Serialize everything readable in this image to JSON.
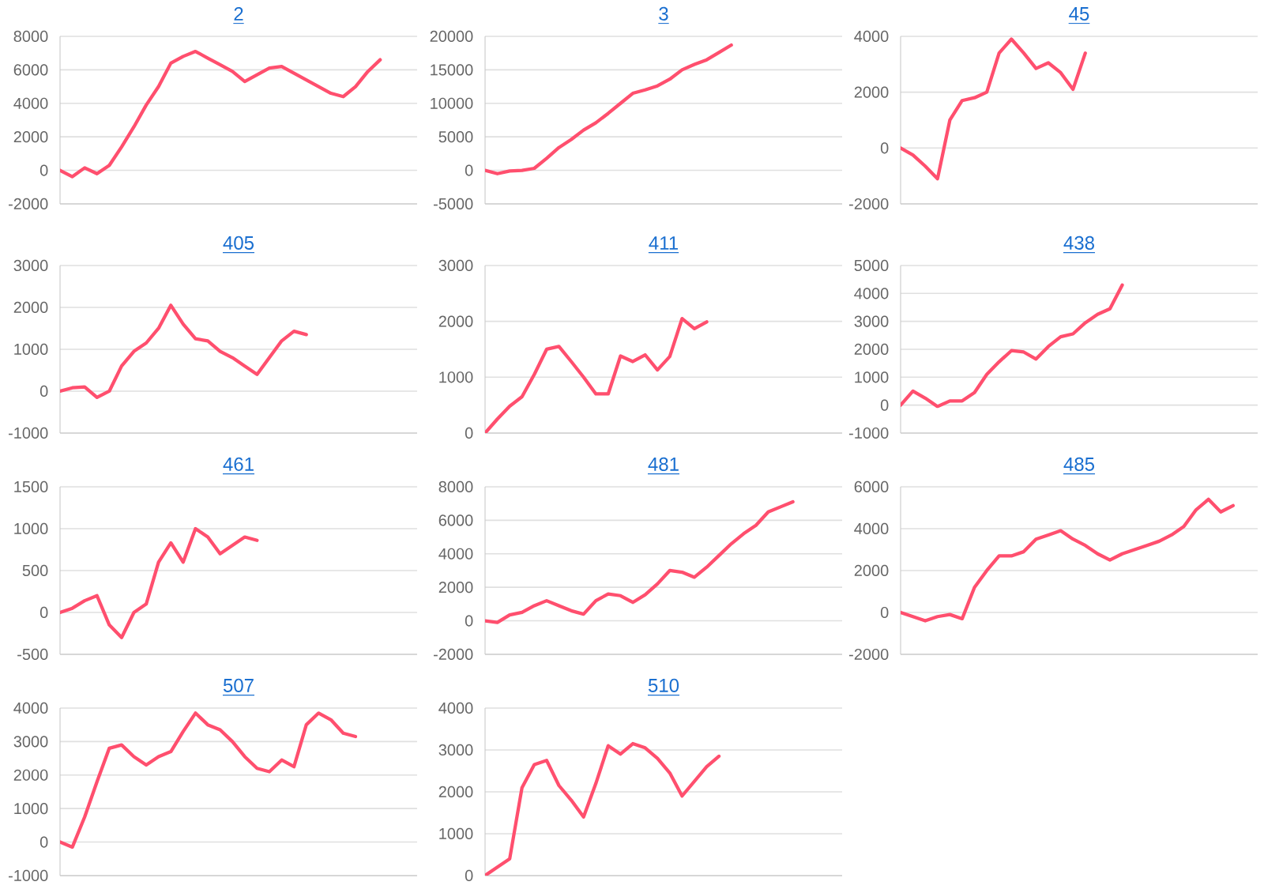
{
  "chart_data": [
    {
      "type": "line",
      "title": "2",
      "categories": [
        null,
        null,
        null,
        null,
        null,
        null,
        null,
        null,
        null,
        null,
        null,
        null,
        null,
        null,
        null,
        null,
        null,
        null,
        null,
        null,
        null,
        null,
        null,
        null,
        null,
        null,
        null,
        null,
        null,
        null
      ],
      "series": [
        {
          "color": "#ff4f6e",
          "values": [
            0,
            -380,
            150,
            -200,
            300,
            1400,
            2600,
            3900,
            5000,
            6400,
            6800,
            7100,
            6700,
            6300,
            5900,
            5300,
            5700,
            6100,
            6200,
            5800,
            5400,
            5000,
            4600,
            4400,
            5000,
            5900,
            6600,
            null,
            null,
            null
          ]
        }
      ],
      "ylim": [
        -2000,
        8000
      ],
      "yticks": [
        -2000,
        0,
        2000,
        4000,
        6000,
        8000
      ],
      "grid": "y",
      "tick_labels": "y"
    },
    {
      "type": "line",
      "title": "3",
      "categories": [
        null,
        null,
        null,
        null,
        null,
        null,
        null,
        null,
        null,
        null,
        null,
        null,
        null,
        null,
        null,
        null,
        null,
        null,
        null,
        null,
        null,
        null,
        null,
        null,
        null,
        null,
        null,
        null,
        null,
        null
      ],
      "series": [
        {
          "color": "#ff4f6e",
          "values": [
            0,
            -500,
            -100,
            0,
            300,
            1800,
            3400,
            4600,
            6000,
            7100,
            8500,
            10000,
            11500,
            12000,
            12600,
            13600,
            15000,
            15800,
            16500,
            17600,
            18700,
            null,
            null,
            null,
            null,
            null,
            null,
            null,
            null,
            null
          ]
        }
      ],
      "ylim": [
        -5000,
        20000
      ],
      "yticks": [
        -5000,
        0,
        5000,
        10000,
        15000,
        20000
      ],
      "grid": "y",
      "tick_labels": "y"
    },
    {
      "type": "line",
      "title": "45",
      "categories": [
        null,
        null,
        null,
        null,
        null,
        null,
        null,
        null,
        null,
        null,
        null,
        null,
        null,
        null,
        null,
        null,
        null,
        null,
        null,
        null,
        null,
        null,
        null,
        null,
        null,
        null,
        null,
        null,
        null,
        null
      ],
      "series": [
        {
          "color": "#ff4f6e",
          "values": [
            0,
            -250,
            -650,
            -1100,
            1000,
            1700,
            1800,
            2000,
            3400,
            3900,
            3400,
            2850,
            3050,
            2700,
            2100,
            3400,
            null,
            null,
            null,
            null,
            null,
            null,
            null,
            null,
            null,
            null,
            null,
            null,
            null,
            null
          ]
        }
      ],
      "ylim": [
        -2000,
        4000
      ],
      "yticks": [
        -2000,
        0,
        2000,
        4000
      ],
      "grid": "y",
      "tick_labels": "y"
    },
    {
      "type": "line",
      "title": "405",
      "categories": [
        null,
        null,
        null,
        null,
        null,
        null,
        null,
        null,
        null,
        null,
        null,
        null,
        null,
        null,
        null,
        null,
        null,
        null,
        null,
        null,
        null,
        null,
        null,
        null,
        null,
        null,
        null,
        null,
        null,
        null
      ],
      "series": [
        {
          "color": "#ff4f6e",
          "values": [
            0,
            80,
            100,
            -150,
            0,
            600,
            950,
            1150,
            1500,
            2050,
            1600,
            1250,
            1200,
            950,
            800,
            600,
            400,
            800,
            1200,
            1430,
            1350,
            null,
            null,
            null,
            null,
            null,
            null,
            null,
            null,
            null
          ]
        }
      ],
      "ylim": [
        -1000,
        3000
      ],
      "yticks": [
        -1000,
        0,
        1000,
        2000,
        3000
      ],
      "grid": "y",
      "tick_labels": "y"
    },
    {
      "type": "line",
      "title": "411",
      "categories": [
        null,
        null,
        null,
        null,
        null,
        null,
        null,
        null,
        null,
        null,
        null,
        null,
        null,
        null,
        null,
        null,
        null,
        null,
        null,
        null,
        null,
        null,
        null,
        null,
        null,
        null,
        null,
        null,
        null,
        null
      ],
      "series": [
        {
          "color": "#ff4f6e",
          "values": [
            0,
            250,
            480,
            650,
            1050,
            1500,
            1550,
            1280,
            1000,
            700,
            700,
            1380,
            1280,
            1400,
            1130,
            1370,
            2050,
            1870,
            1990,
            null,
            null,
            null,
            null,
            null,
            null,
            null,
            null,
            null,
            null,
            null
          ]
        }
      ],
      "ylim": [
        0,
        3000
      ],
      "yticks": [
        0,
        1000,
        2000,
        3000
      ],
      "grid": "y",
      "tick_labels": "y"
    },
    {
      "type": "line",
      "title": "438",
      "categories": [
        null,
        null,
        null,
        null,
        null,
        null,
        null,
        null,
        null,
        null,
        null,
        null,
        null,
        null,
        null,
        null,
        null,
        null,
        null,
        null,
        null,
        null,
        null,
        null,
        null,
        null,
        null,
        null,
        null,
        null
      ],
      "series": [
        {
          "color": "#ff4f6e",
          "values": [
            0,
            500,
            250,
            -50,
            150,
            150,
            450,
            1100,
            1550,
            1950,
            1900,
            1650,
            2100,
            2450,
            2550,
            2950,
            3250,
            3450,
            4300,
            null,
            null,
            null,
            null,
            null,
            null,
            null,
            null,
            null,
            null,
            null
          ]
        }
      ],
      "ylim": [
        -1000,
        5000
      ],
      "yticks": [
        -1000,
        0,
        1000,
        2000,
        3000,
        4000,
        5000
      ],
      "grid": "y",
      "tick_labels": "y"
    },
    {
      "type": "line",
      "title": "461",
      "categories": [
        null,
        null,
        null,
        null,
        null,
        null,
        null,
        null,
        null,
        null,
        null,
        null,
        null,
        null,
        null,
        null,
        null,
        null,
        null,
        null,
        null,
        null,
        null,
        null,
        null,
        null,
        null,
        null,
        null,
        null
      ],
      "series": [
        {
          "color": "#ff4f6e",
          "values": [
            0,
            50,
            140,
            200,
            -150,
            -300,
            0,
            100,
            600,
            830,
            600,
            1000,
            900,
            700,
            800,
            900,
            860,
            null,
            null,
            null,
            null,
            null,
            null,
            null,
            null,
            null,
            null,
            null,
            null,
            null
          ]
        }
      ],
      "ylim": [
        -500,
        1500
      ],
      "yticks": [
        -500,
        0,
        500,
        1000,
        1500
      ],
      "grid": "y",
      "tick_labels": "y"
    },
    {
      "type": "line",
      "title": "481",
      "categories": [
        null,
        null,
        null,
        null,
        null,
        null,
        null,
        null,
        null,
        null,
        null,
        null,
        null,
        null,
        null,
        null,
        null,
        null,
        null,
        null,
        null,
        null,
        null,
        null,
        null,
        null,
        null,
        null,
        null,
        null
      ],
      "series": [
        {
          "color": "#ff4f6e",
          "values": [
            0,
            -100,
            350,
            500,
            900,
            1200,
            900,
            600,
            400,
            1200,
            1600,
            1500,
            1100,
            1550,
            2200,
            3000,
            2900,
            2600,
            3200,
            3900,
            4600,
            5200,
            5700,
            6500,
            6800,
            7100,
            null,
            null,
            null,
            null
          ]
        }
      ],
      "ylim": [
        -2000,
        8000
      ],
      "yticks": [
        -2000,
        0,
        2000,
        4000,
        6000,
        8000
      ],
      "grid": "y",
      "tick_labels": "y"
    },
    {
      "type": "line",
      "title": "485",
      "categories": [
        null,
        null,
        null,
        null,
        null,
        null,
        null,
        null,
        null,
        null,
        null,
        null,
        null,
        null,
        null,
        null,
        null,
        null,
        null,
        null,
        null,
        null,
        null,
        null,
        null,
        null,
        null,
        null,
        null,
        null
      ],
      "series": [
        {
          "color": "#ff4f6e",
          "values": [
            0,
            -200,
            -400,
            -200,
            -100,
            -300,
            1200,
            2000,
            2700,
            2700,
            2900,
            3500,
            3700,
            3900,
            3500,
            3200,
            2800,
            2500,
            2800,
            3000,
            3200,
            3400,
            3700,
            4100,
            4900,
            5400,
            4800,
            5100,
            null,
            null
          ]
        }
      ],
      "ylim": [
        -2000,
        6000
      ],
      "yticks": [
        -2000,
        0,
        2000,
        4000,
        6000
      ],
      "grid": "y",
      "tick_labels": "y"
    },
    {
      "type": "line",
      "title": "507",
      "categories": [
        null,
        null,
        null,
        null,
        null,
        null,
        null,
        null,
        null,
        null,
        null,
        null,
        null,
        null,
        null,
        null,
        null,
        null,
        null,
        null,
        null,
        null,
        null,
        null,
        null,
        null,
        null,
        null,
        null,
        null
      ],
      "series": [
        {
          "color": "#ff4f6e",
          "values": [
            0,
            -150,
            750,
            1800,
            2800,
            2900,
            2550,
            2300,
            2550,
            2700,
            3300,
            3850,
            3500,
            3350,
            3000,
            2550,
            2200,
            2100,
            2450,
            2250,
            3500,
            3850,
            3650,
            3250,
            3150,
            null,
            null,
            null,
            null,
            null
          ]
        }
      ],
      "ylim": [
        -1000,
        4000
      ],
      "yticks": [
        -1000,
        0,
        1000,
        2000,
        3000,
        4000
      ],
      "grid": "y",
      "tick_labels": "y"
    },
    {
      "type": "line",
      "title": "510",
      "categories": [
        null,
        null,
        null,
        null,
        null,
        null,
        null,
        null,
        null,
        null,
        null,
        null,
        null,
        null,
        null,
        null,
        null,
        null,
        null,
        null,
        null,
        null,
        null,
        null,
        null,
        null,
        null,
        null,
        null,
        null
      ],
      "series": [
        {
          "color": "#ff4f6e",
          "values": [
            0,
            200,
            400,
            2100,
            2650,
            2750,
            2150,
            1800,
            1400,
            2200,
            3100,
            2900,
            3150,
            3050,
            2800,
            2450,
            1900,
            2250,
            2600,
            2850,
            null,
            null,
            null,
            null,
            null,
            null,
            null,
            null,
            null,
            null
          ]
        }
      ],
      "ylim": [
        0,
        4000
      ],
      "yticks": [
        0,
        1000,
        2000,
        3000,
        4000
      ],
      "grid": "y",
      "tick_labels": "y"
    }
  ]
}
